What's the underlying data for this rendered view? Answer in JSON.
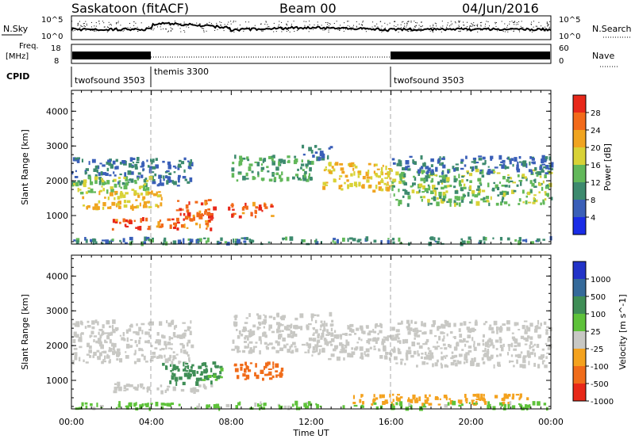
{
  "header": {
    "station": "Saskatoon (fitACF)",
    "beam": "Beam 00",
    "date": "04/Jun/2016"
  },
  "noise_panel": {
    "left_label": "N.Sky",
    "right_label": "N.Search",
    "left_ticks": [
      "10^5",
      "10^0"
    ],
    "right_ticks": [
      "10^5",
      "10^0"
    ]
  },
  "freq_panel": {
    "left_label_1": "Freq.",
    "left_label_2": "[MHz]",
    "right_label": "Nave",
    "left_ticks": [
      "18",
      "8"
    ],
    "right_ticks": [
      "60",
      "0"
    ]
  },
  "cpid_panel": {
    "label": "CPID",
    "segments": [
      {
        "name": "twofsound 3503",
        "start_hour": 0,
        "end_hour": 3.8
      },
      {
        "name": "themis 3300",
        "start_hour": 3.8,
        "end_hour": 16
      },
      {
        "name": "twofsound 3503",
        "start_hour": 16,
        "end_hour": 24
      }
    ]
  },
  "power_colorbar": {
    "title": "Power [dB]",
    "ticks": [
      "4",
      "8",
      "12",
      "16",
      "20",
      "24",
      "28"
    ],
    "colors": [
      "#1a2ce6",
      "#3a5fb8",
      "#3d8a6e",
      "#62b85a",
      "#d8d236",
      "#f0a420",
      "#f26a1a",
      "#e8281a"
    ]
  },
  "velocity_colorbar": {
    "title": "Velocity [m s^-1]",
    "ticks": [
      "1000",
      "500",
      "100",
      "25",
      "-25",
      "-100",
      "-500",
      "-1000"
    ],
    "colors": [
      "#2233c8",
      "#356a9a",
      "#3f8e56",
      "#5ec23a",
      "#c8c8c4",
      "#f4a21e",
      "#f06c1a",
      "#e82818"
    ]
  },
  "axes": {
    "ylabel": "Slant Range [km]",
    "yticks": [
      "1000",
      "2000",
      "3000",
      "4000"
    ],
    "xticks": [
      "00:00",
      "04:00",
      "08:00",
      "12:00",
      "16:00",
      "20:00",
      "00:00"
    ],
    "xlabel": "Time UT"
  },
  "chart_data": [
    {
      "type": "heatmap",
      "quantity": "Power",
      "x_unit": "hours UT",
      "y_unit": "km",
      "xlim": [
        0,
        24
      ],
      "ylim": [
        180,
        4600
      ],
      "zlim": [
        0,
        30
      ],
      "bands": [
        {
          "x": [
            0,
            6
          ],
          "y": [
            1850,
            2650
          ],
          "z": 8
        },
        {
          "x": [
            0,
            4
          ],
          "y": [
            1600,
            2100
          ],
          "z": 16
        },
        {
          "x": [
            0.5,
            4.5
          ],
          "y": [
            1200,
            1700
          ],
          "z": 20
        },
        {
          "x": [
            2,
            7
          ],
          "y": [
            600,
            900
          ],
          "z": 27
        },
        {
          "x": [
            5.2,
            7.2
          ],
          "y": [
            850,
            1450
          ],
          "z": 27
        },
        {
          "x": [
            7.8,
            10
          ],
          "y": [
            950,
            1350
          ],
          "z": 27
        },
        {
          "x": [
            8,
            12
          ],
          "y": [
            2000,
            2700
          ],
          "z": 12
        },
        {
          "x": [
            11.5,
            13
          ],
          "y": [
            2600,
            3000
          ],
          "z": 8
        },
        {
          "x": [
            12.5,
            16
          ],
          "y": [
            1700,
            2500
          ],
          "z": 20
        },
        {
          "x": [
            16,
            24
          ],
          "y": [
            1300,
            2300
          ],
          "z": 14
        },
        {
          "x": [
            16,
            24
          ],
          "y": [
            2200,
            2700
          ],
          "z": 8
        },
        {
          "x": [
            0,
            24
          ],
          "y": [
            180,
            350
          ],
          "z": 10
        }
      ]
    },
    {
      "type": "heatmap",
      "quantity": "Velocity",
      "x_unit": "hours UT",
      "y_unit": "km",
      "xlim": [
        0,
        24
      ],
      "ylim": [
        180,
        4600
      ],
      "zlim": [
        -1000,
        1000
      ],
      "bands": [
        {
          "x": [
            0,
            6
          ],
          "y": [
            1500,
            2700
          ],
          "z": 0
        },
        {
          "x": [
            2,
            7
          ],
          "y": [
            650,
            900
          ],
          "z": 0
        },
        {
          "x": [
            4.5,
            7.5
          ],
          "y": [
            900,
            1500
          ],
          "z": 150
        },
        {
          "x": [
            6.5,
            7.5
          ],
          "y": [
            1000,
            1400
          ],
          "z": 60
        },
        {
          "x": [
            8,
            10.5
          ],
          "y": [
            1000,
            1500
          ],
          "z": -300
        },
        {
          "x": [
            8,
            13
          ],
          "y": [
            1800,
            2900
          ],
          "z": 0
        },
        {
          "x": [
            12,
            16
          ],
          "y": [
            1600,
            2600
          ],
          "z": 0
        },
        {
          "x": [
            16,
            24
          ],
          "y": [
            1400,
            2700
          ],
          "z": 0
        },
        {
          "x": [
            14,
            23
          ],
          "y": [
            300,
            600
          ],
          "z": -80
        },
        {
          "x": [
            0,
            24
          ],
          "y": [
            180,
            350
          ],
          "z": 40
        }
      ]
    }
  ]
}
